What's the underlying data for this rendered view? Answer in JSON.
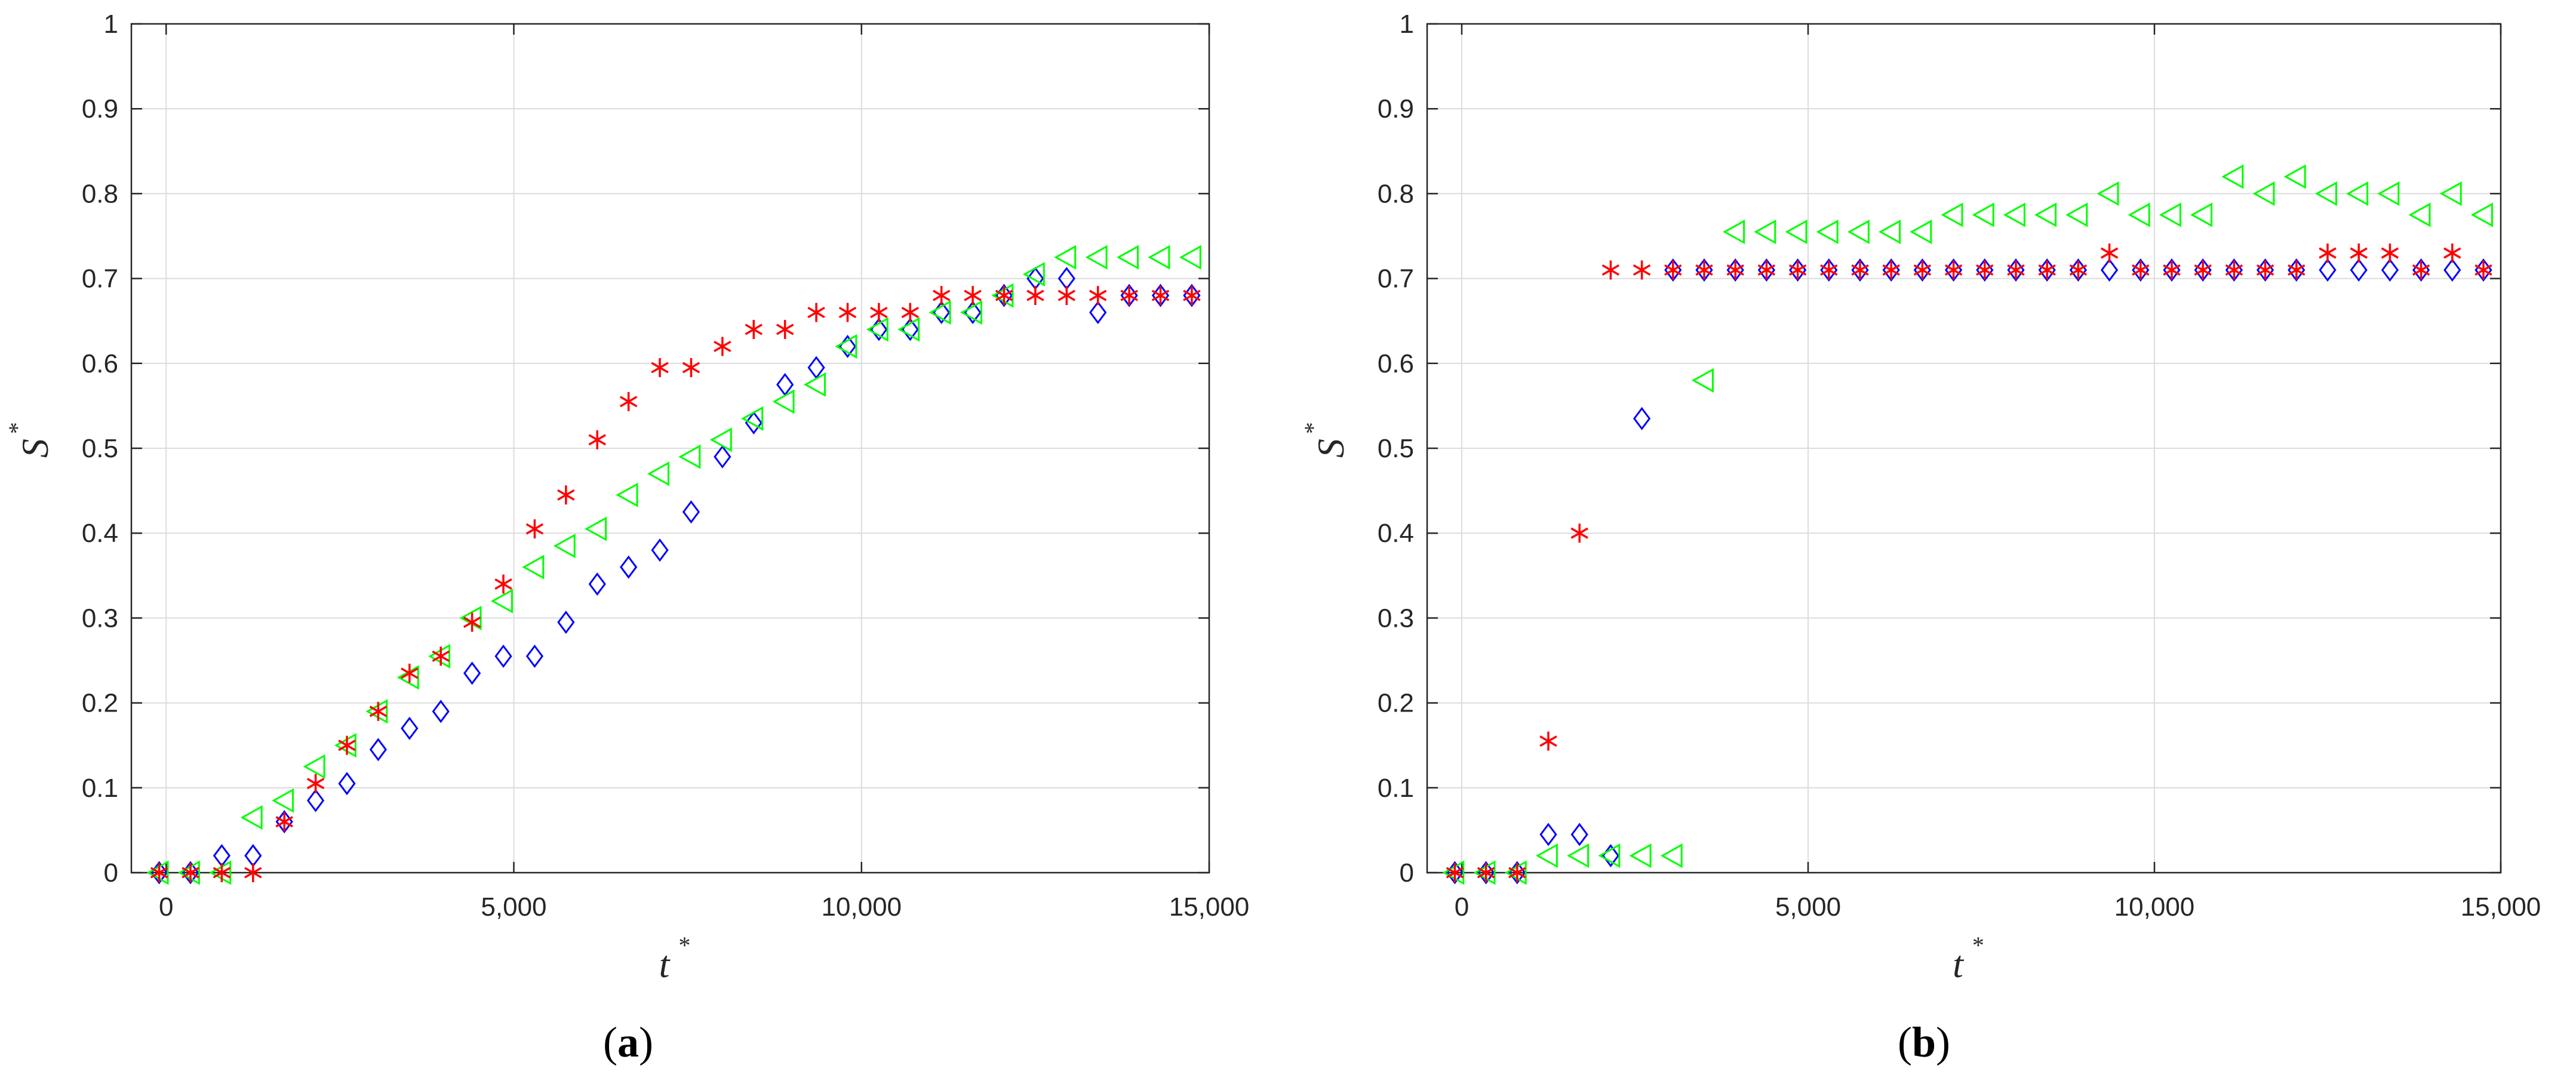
{
  "chart_data": [
    {
      "type": "scatter",
      "caption_open": "(",
      "caption_letter": "a",
      "caption_close": ")",
      "xlabel": "t",
      "xlabel_sup": "*",
      "ylabel": "S",
      "ylabel_sup": "*",
      "xlim": [
        -500,
        15000
      ],
      "ylim": [
        0,
        1
      ],
      "xticks": [
        0,
        5000,
        10000,
        15000
      ],
      "xtick_labels": [
        "0",
        "5,000",
        "10,000",
        "15,000"
      ],
      "yticks": [
        0,
        0.1,
        0.2,
        0.3,
        0.4,
        0.5,
        0.6,
        0.7,
        0.8,
        0.9,
        1
      ],
      "ytick_labels": [
        "0",
        "0.1",
        "0.2",
        "0.3",
        "0.4",
        "0.5",
        "0.6",
        "0.7",
        "0.8",
        "0.9",
        "1"
      ],
      "grid": true,
      "series": [
        {
          "marker": "diamond",
          "color": "#0000ff",
          "x": [
            -100,
            350,
            800,
            1250,
            1700,
            2150,
            2600,
            3050,
            3500,
            3950,
            4400,
            4850,
            5300,
            5750,
            6200,
            6650,
            7100,
            7550,
            8000,
            8450,
            8900,
            9350,
            9800,
            10250,
            10700,
            11150,
            11600,
            12050,
            12500,
            12950,
            13400,
            13850,
            14300,
            14750
          ],
          "y": [
            0,
            0,
            0.02,
            0.02,
            0.06,
            0.085,
            0.105,
            0.145,
            0.17,
            0.19,
            0.235,
            0.255,
            0.255,
            0.295,
            0.34,
            0.36,
            0.38,
            0.425,
            0.49,
            0.53,
            0.575,
            0.595,
            0.62,
            0.64,
            0.64,
            0.66,
            0.66,
            0.68,
            0.7,
            0.7,
            0.66,
            0.68,
            0.68,
            0.68
          ]
        },
        {
          "marker": "asterisk",
          "color": "#ff0000",
          "x": [
            -100,
            350,
            800,
            1250,
            1700,
            2150,
            2600,
            3050,
            3500,
            3950,
            4400,
            4850,
            5300,
            5750,
            6200,
            6650,
            7100,
            7550,
            8000,
            8450,
            8900,
            9350,
            9800,
            10250,
            10700,
            11150,
            11600,
            12050,
            12500,
            12950,
            13400,
            13850,
            14300,
            14750
          ],
          "y": [
            0,
            0,
            0,
            0,
            0.06,
            0.105,
            0.15,
            0.19,
            0.235,
            0.255,
            0.295,
            0.34,
            0.405,
            0.445,
            0.51,
            0.555,
            0.595,
            0.595,
            0.62,
            0.64,
            0.64,
            0.66,
            0.66,
            0.66,
            0.66,
            0.68,
            0.68,
            0.68,
            0.68,
            0.68,
            0.68,
            0.68,
            0.68,
            0.68
          ]
        },
        {
          "marker": "triangle-left",
          "color": "#00ff00",
          "x": [
            -100,
            350,
            800,
            1250,
            1700,
            2150,
            2600,
            3050,
            3500,
            3950,
            4400,
            4850,
            5300,
            5750,
            6200,
            6650,
            7100,
            7550,
            8000,
            8450,
            8900,
            9350,
            9800,
            10250,
            10700,
            11150,
            11600,
            12050,
            12500,
            12950,
            13400,
            13850,
            14300,
            14750
          ],
          "y": [
            0,
            0,
            0,
            0.065,
            0.085,
            0.125,
            0.15,
            0.19,
            0.23,
            0.255,
            0.3,
            0.32,
            0.36,
            0.385,
            0.405,
            0.445,
            0.47,
            0.49,
            0.51,
            0.535,
            0.555,
            0.575,
            0.62,
            0.64,
            0.64,
            0.66,
            0.66,
            0.68,
            0.705,
            0.725,
            0.725,
            0.725,
            0.725,
            0.725
          ]
        }
      ]
    },
    {
      "type": "scatter",
      "caption_open": "(",
      "caption_letter": "b",
      "caption_close": ")",
      "xlabel": "t",
      "xlabel_sup": "*",
      "ylabel": "S",
      "ylabel_sup": "*",
      "xlim": [
        -500,
        15000
      ],
      "ylim": [
        0,
        1
      ],
      "xticks": [
        0,
        5000,
        10000,
        15000
      ],
      "xtick_labels": [
        "0",
        "5,000",
        "10,000",
        "15,000"
      ],
      "yticks": [
        0,
        0.1,
        0.2,
        0.3,
        0.4,
        0.5,
        0.6,
        0.7,
        0.8,
        0.9,
        1
      ],
      "ytick_labels": [
        "0",
        "0.1",
        "0.2",
        "0.3",
        "0.4",
        "0.5",
        "0.6",
        "0.7",
        "0.8",
        "0.9",
        "1"
      ],
      "grid": true,
      "series": [
        {
          "marker": "diamond",
          "color": "#0000ff",
          "x": [
            -100,
            350,
            800,
            1250,
            1700,
            2150,
            2600,
            3050,
            3500,
            3950,
            4400,
            4850,
            5300,
            5750,
            6200,
            6650,
            7100,
            7550,
            8000,
            8450,
            8900,
            9350,
            9800,
            10250,
            10700,
            11150,
            11600,
            12050,
            12500,
            12950,
            13400,
            13850,
            14300,
            14750
          ],
          "y": [
            0,
            0,
            0,
            0.045,
            0.045,
            0.02,
            0.535,
            0.71,
            0.71,
            0.71,
            0.71,
            0.71,
            0.71,
            0.71,
            0.71,
            0.71,
            0.71,
            0.71,
            0.71,
            0.71,
            0.71,
            0.71,
            0.71,
            0.71,
            0.71,
            0.71,
            0.71,
            0.71,
            0.71,
            0.71,
            0.71,
            0.71,
            0.71,
            0.71
          ]
        },
        {
          "marker": "asterisk",
          "color": "#ff0000",
          "x": [
            -100,
            350,
            800,
            1250,
            1700,
            2150,
            2600,
            3050,
            3500,
            3950,
            4400,
            4850,
            5300,
            5750,
            6200,
            6650,
            7100,
            7550,
            8000,
            8450,
            8900,
            9350,
            9800,
            10250,
            10700,
            11150,
            11600,
            12050,
            12500,
            12950,
            13400,
            13850,
            14300,
            14750
          ],
          "y": [
            0,
            0,
            0,
            0.155,
            0.4,
            0.71,
            0.71,
            0.71,
            0.71,
            0.71,
            0.71,
            0.71,
            0.71,
            0.71,
            0.71,
            0.71,
            0.71,
            0.71,
            0.71,
            0.71,
            0.71,
            0.73,
            0.71,
            0.71,
            0.71,
            0.71,
            0.71,
            0.71,
            0.73,
            0.73,
            0.73,
            0.71,
            0.73,
            0.71
          ]
        },
        {
          "marker": "triangle-left",
          "color": "#00ff00",
          "x": [
            -100,
            350,
            800,
            1250,
            1700,
            2150,
            2600,
            3050,
            3500,
            3950,
            4400,
            4850,
            5300,
            5750,
            6200,
            6650,
            7100,
            7550,
            8000,
            8450,
            8900,
            9350,
            9800,
            10250,
            10700,
            11150,
            11600,
            12050,
            12500,
            12950,
            13400,
            13850,
            14300,
            14750
          ],
          "y": [
            0,
            0,
            0,
            0.02,
            0.02,
            0.02,
            0.02,
            0.02,
            0.58,
            0.755,
            0.755,
            0.755,
            0.755,
            0.755,
            0.755,
            0.755,
            0.775,
            0.775,
            0.775,
            0.775,
            0.775,
            0.8,
            0.775,
            0.775,
            0.775,
            0.82,
            0.8,
            0.82,
            0.8,
            0.8,
            0.8,
            0.775,
            0.8,
            0.775
          ]
        }
      ]
    }
  ]
}
